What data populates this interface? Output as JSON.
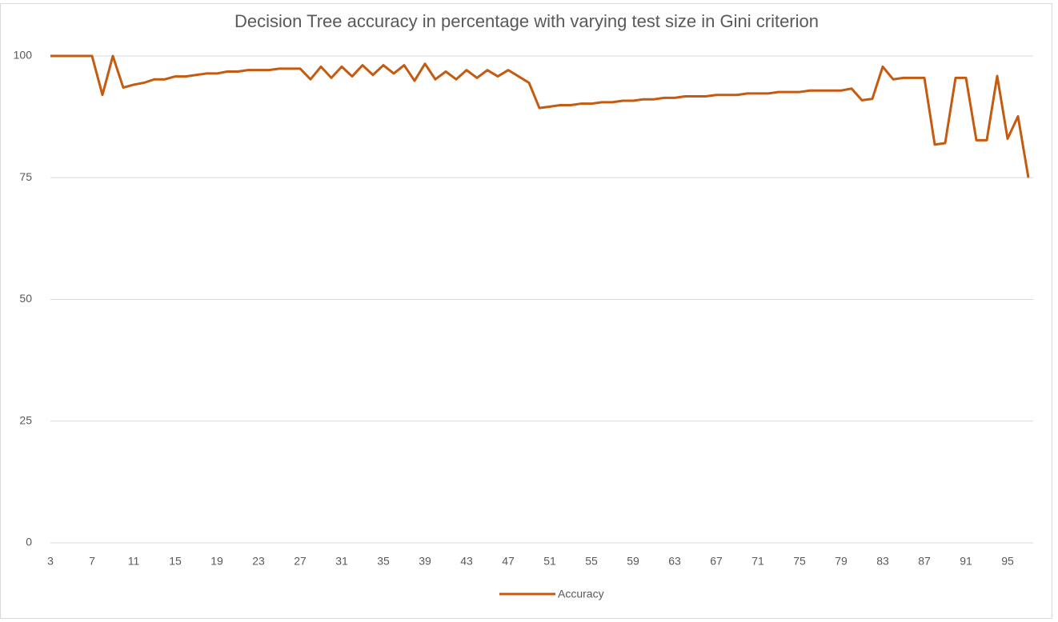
{
  "chart_data": {
    "type": "line",
    "title": "Decision Tree accuracy in percentage with varying test size in Gini criterion",
    "x": [
      3,
      4,
      5,
      6,
      7,
      8,
      9,
      10,
      11,
      12,
      13,
      14,
      15,
      16,
      17,
      18,
      19,
      20,
      21,
      22,
      23,
      24,
      25,
      26,
      27,
      28,
      29,
      30,
      31,
      32,
      33,
      34,
      35,
      36,
      37,
      38,
      39,
      40,
      41,
      42,
      43,
      44,
      45,
      46,
      47,
      48,
      49,
      50,
      51,
      52,
      53,
      54,
      55,
      56,
      57,
      58,
      59,
      60,
      61,
      62,
      63,
      64,
      65,
      66,
      67,
      68,
      69,
      70,
      71,
      72,
      73,
      74,
      75,
      76,
      77,
      78,
      79,
      80,
      81,
      82,
      83,
      84,
      85,
      86,
      87,
      88,
      89,
      90,
      91,
      92,
      93,
      94,
      95,
      96,
      97
    ],
    "xlim": [
      3,
      97
    ],
    "xticks": [
      3,
      7,
      11,
      15,
      19,
      23,
      27,
      31,
      35,
      39,
      43,
      47,
      51,
      55,
      59,
      63,
      67,
      71,
      75,
      79,
      83,
      87,
      91,
      95
    ],
    "series": [
      {
        "name": "Accuracy",
        "color": "#c55a11",
        "values": [
          100,
          100,
          100,
          100,
          100,
          92,
          100,
          93.5,
          94.1,
          94.5,
          95.2,
          95.2,
          95.8,
          95.8,
          96.1,
          96.4,
          96.4,
          96.8,
          96.8,
          97.1,
          97.1,
          97.1,
          97.4,
          97.4,
          97.4,
          95.2,
          97.8,
          95.5,
          97.8,
          95.8,
          98.1,
          96.1,
          98.1,
          96.4,
          98.1,
          94.9,
          98.4,
          95.2,
          96.8,
          95.2,
          97.1,
          95.5,
          97.1,
          95.8,
          97.1,
          95.8,
          94.5,
          89.3,
          89.6,
          89.9,
          89.9,
          90.2,
          90.2,
          90.5,
          90.5,
          90.8,
          90.8,
          91.1,
          91.1,
          91.4,
          91.4,
          91.7,
          91.7,
          91.7,
          92.0,
          92.0,
          92.0,
          92.3,
          92.3,
          92.3,
          92.6,
          92.6,
          92.6,
          92.9,
          92.9,
          92.9,
          92.9,
          93.3,
          90.9,
          91.2,
          97.8,
          95.2,
          95.5,
          95.5,
          95.5,
          81.8,
          82.1,
          95.5,
          95.5,
          82.7,
          82.7,
          95.9,
          83.0,
          87.6,
          75
        ]
      }
    ],
    "ylim": [
      0,
      100
    ],
    "yticks": [
      0,
      25,
      50,
      75,
      100
    ],
    "grid": true,
    "legend": "bottom"
  }
}
